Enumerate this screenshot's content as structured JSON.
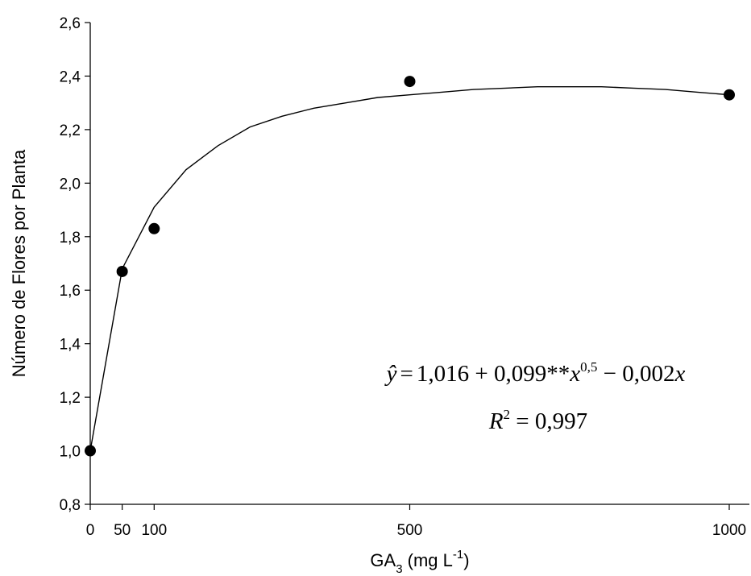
{
  "chart_data": {
    "type": "scatter",
    "xlabel": {
      "main": "GA",
      "sub": "3",
      "unit_open": " (mg L",
      "unit_sup": "-1",
      "unit_close": ")"
    },
    "ylabel": "Número de Flores por Planta",
    "x_ticks": [
      0,
      50,
      100,
      500,
      1000
    ],
    "x_tick_labels": [
      "0",
      "50",
      "100",
      "500",
      "1000"
    ],
    "y_ticks": [
      0.8,
      1.0,
      1.2,
      1.4,
      1.6,
      1.8,
      2.0,
      2.2,
      2.4,
      2.6
    ],
    "y_tick_labels": [
      "0,8",
      "1,0",
      "1,2",
      "1,4",
      "1,6",
      "1,8",
      "2,0",
      "2,2",
      "2,4",
      "2,6"
    ],
    "xlim": [
      0,
      1000
    ],
    "ylim": [
      0.8,
      2.6
    ],
    "grid": false,
    "series": [
      {
        "points": [
          {
            "x": 0,
            "y": 1.0
          },
          {
            "x": 50,
            "y": 1.67
          },
          {
            "x": 100,
            "y": 1.83
          },
          {
            "x": 500,
            "y": 2.38
          },
          {
            "x": 1000,
            "y": 2.33
          }
        ]
      }
    ],
    "fit": {
      "type": "line",
      "x": [
        0,
        50,
        100,
        150,
        200,
        250,
        300,
        350,
        400,
        450,
        500,
        550,
        600,
        650,
        700,
        750,
        800,
        850,
        900,
        950,
        1000
      ],
      "y": [
        1.0,
        1.68,
        1.91,
        2.05,
        2.14,
        2.21,
        2.25,
        2.28,
        2.3,
        2.32,
        2.33,
        2.34,
        2.35,
        2.355,
        2.36,
        2.36,
        2.36,
        2.355,
        2.35,
        2.34,
        2.33
      ]
    },
    "annotations": {
      "equation": {
        "yhat": "ŷ",
        "eq": "=",
        "part1": "1,016 + 0,099**",
        "x1": "x",
        "exp": "0,5",
        "part2": " − 0,002",
        "x2": "x"
      },
      "r2": {
        "r": "R",
        "exp": "2",
        "rest": " = 0,997"
      }
    }
  }
}
